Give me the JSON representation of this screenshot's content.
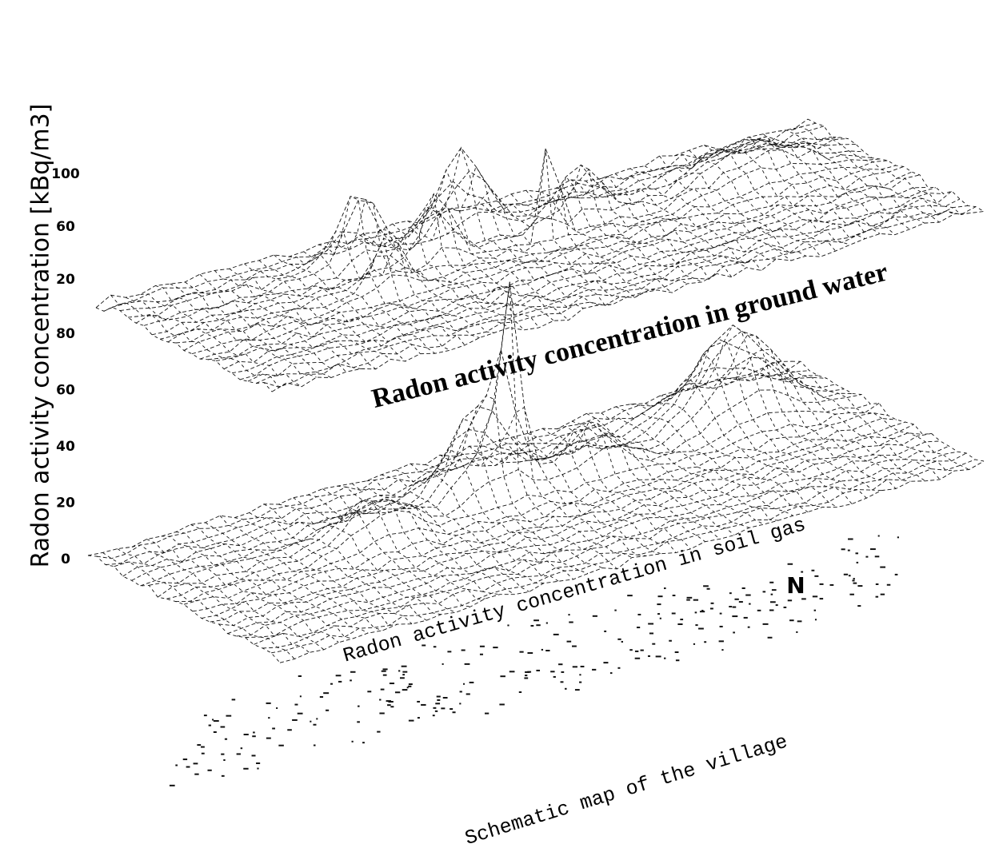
{
  "chart_data": {
    "type": "surface3d",
    "z_axis_label": "Radon activity concentration [kBq/m3]",
    "panels": [
      {
        "label": "Radon activity concentration in ground water",
        "zlim": [
          20,
          100
        ],
        "zticks": [
          20,
          60,
          100
        ]
      },
      {
        "label": "Radon activity concentration in soil gas",
        "zlim": [
          0,
          80
        ],
        "zticks": [
          0,
          20,
          40,
          60,
          80
        ]
      }
    ],
    "map_label": "Schematic map of the village",
    "north_label": "N"
  }
}
